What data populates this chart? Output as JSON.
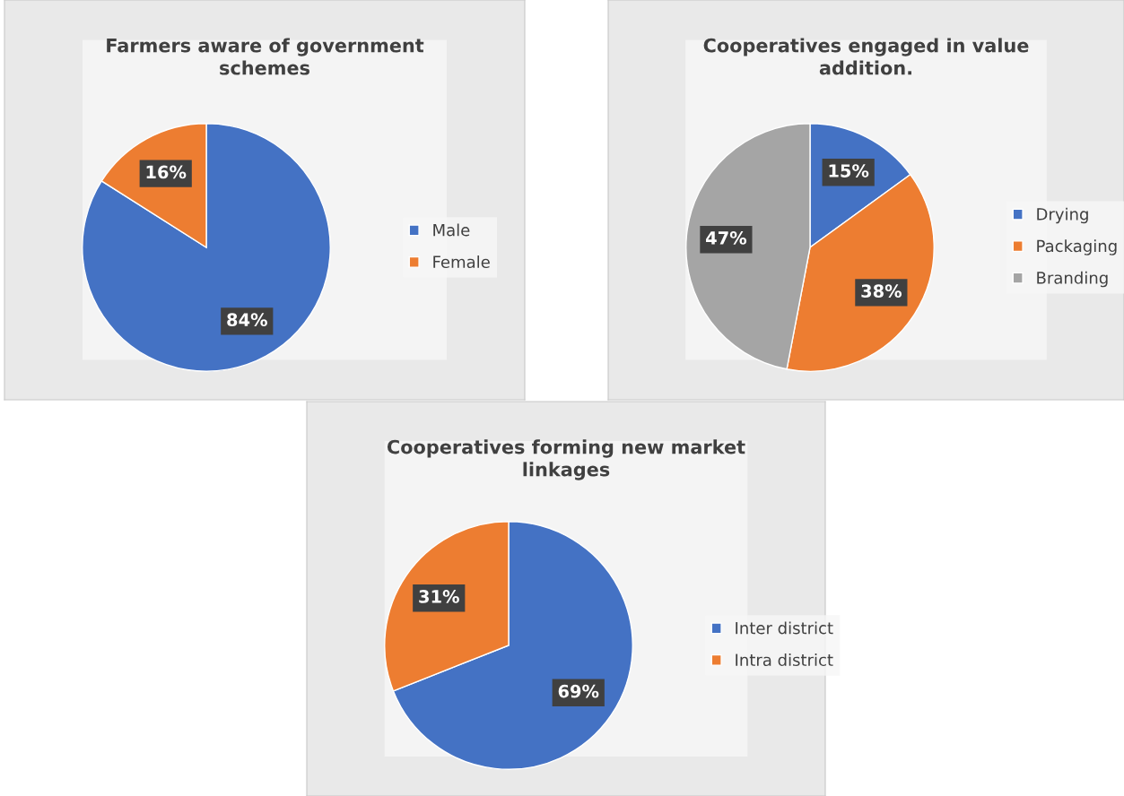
{
  "chart_data": [
    {
      "type": "pie",
      "title": "Farmers aware of government schemes",
      "categories": [
        "Male",
        "Female"
      ],
      "values": [
        84,
        16
      ],
      "colors": [
        "#4472c4",
        "#ed7d31"
      ],
      "data_labels": true,
      "value_labels": [
        "84%",
        "16%"
      ],
      "legend": "right"
    },
    {
      "type": "pie",
      "title": "Cooperatives engaged in value addition.",
      "categories": [
        "Drying",
        "Packaging",
        "Branding"
      ],
      "values": [
        15,
        38,
        47
      ],
      "colors": [
        "#4472c4",
        "#ed7d31",
        "#a5a5a5"
      ],
      "data_labels": true,
      "value_labels": [
        "15%",
        "38%",
        "47%"
      ],
      "legend": "right"
    },
    {
      "type": "pie",
      "title": "Cooperatives forming new market linkages",
      "categories": [
        "Inter district",
        "Intra district"
      ],
      "values": [
        69,
        31
      ],
      "colors": [
        "#4472c4",
        "#ed7d31"
      ],
      "data_labels": true,
      "value_labels": [
        "69%",
        "31%"
      ],
      "legend": "right"
    }
  ]
}
